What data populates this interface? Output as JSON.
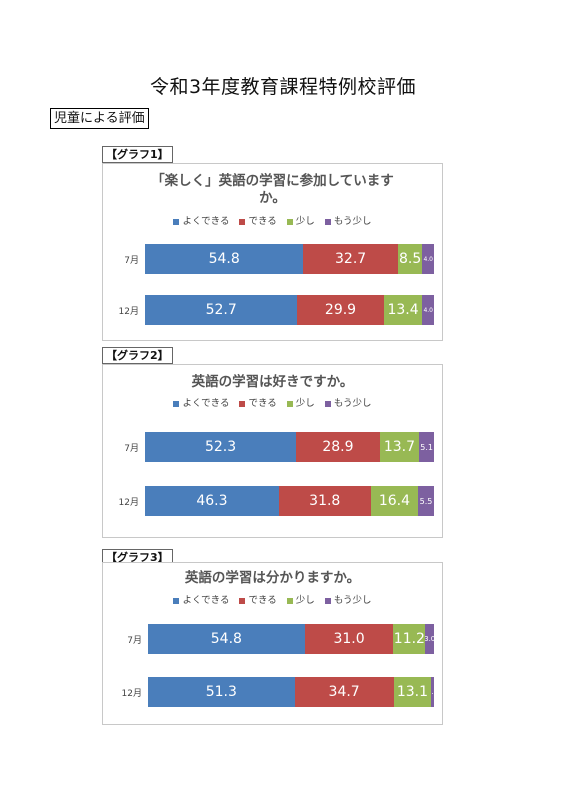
{
  "document": {
    "title": "令和3年度教育課程特例校評価",
    "section": "児童による評価"
  },
  "colors": {
    "よくできる": "#4a7ebb",
    "できる": "#be4b48",
    "少し": "#98b954",
    "もう少し": "#7d60a0"
  },
  "chart_data": [
    {
      "type": "bar",
      "orientation": "horizontal",
      "stacked": "percent",
      "label": "【グラフ1】",
      "title": "「楽しく」英語の学習に参加していますか。",
      "title_lines": [
        "「楽しく」英語の学習に参加しています",
        "か。"
      ],
      "categories": [
        "7月",
        "12月"
      ],
      "legend": "top",
      "series": [
        {
          "name": "よくできる",
          "color": "#4a7ebb",
          "values": [
            54.8,
            52.7
          ],
          "labels": [
            "54.8",
            "52.7"
          ]
        },
        {
          "name": "できる",
          "color": "#be4b48",
          "values": [
            32.7,
            29.9
          ],
          "labels": [
            "32.7",
            "29.9"
          ]
        },
        {
          "name": "少し",
          "color": "#98b954",
          "values": [
            8.5,
            13.4
          ],
          "labels": [
            "8.5",
            "13.4"
          ]
        },
        {
          "name": "もう少し",
          "color": "#7d60a0",
          "values": [
            4.0,
            4.0
          ],
          "labels": [
            "4.0",
            "4.0"
          ]
        }
      ]
    },
    {
      "type": "bar",
      "orientation": "horizontal",
      "stacked": "percent",
      "label": "【グラフ2】",
      "title": "英語の学習は好きですか。",
      "title_lines": [
        "英語の学習は好きですか。"
      ],
      "categories": [
        "7月",
        "12月"
      ],
      "legend": "top",
      "series": [
        {
          "name": "よくできる",
          "color": "#4a7ebb",
          "values": [
            52.3,
            46.3
          ],
          "labels": [
            "52.3",
            "46.3"
          ]
        },
        {
          "name": "できる",
          "color": "#be4b48",
          "values": [
            28.9,
            31.8
          ],
          "labels": [
            "28.9",
            "31.8"
          ]
        },
        {
          "name": "少し",
          "color": "#98b954",
          "values": [
            13.7,
            16.4
          ],
          "labels": [
            "13.7",
            "16.4"
          ]
        },
        {
          "name": "もう少し",
          "color": "#7d60a0",
          "values": [
            5.1,
            5.5
          ],
          "labels": [
            "5.1",
            "5.5"
          ]
        }
      ]
    },
    {
      "type": "bar",
      "orientation": "horizontal",
      "stacked": "percent",
      "label": "【グラフ3】",
      "title": "英語の学習は分かりますか。",
      "title_lines": [
        "英語の学習は分かりますか。"
      ],
      "categories": [
        "7月",
        "12月"
      ],
      "legend": "top",
      "series": [
        {
          "name": "よくできる",
          "color": "#4a7ebb",
          "values": [
            54.8,
            51.3
          ],
          "labels": [
            "54.8",
            "51.3"
          ]
        },
        {
          "name": "できる",
          "color": "#be4b48",
          "values": [
            31.0,
            34.7
          ],
          "labels": [
            "31.0",
            "34.7"
          ]
        },
        {
          "name": "少し",
          "color": "#98b954",
          "values": [
            11.2,
            13.1
          ],
          "labels": [
            "11.2",
            "13.1"
          ]
        },
        {
          "name": "もう少し",
          "color": "#7d60a0",
          "values": [
            3.0,
            1.0
          ],
          "labels": [
            "3.0",
            "1.0"
          ]
        }
      ]
    }
  ]
}
